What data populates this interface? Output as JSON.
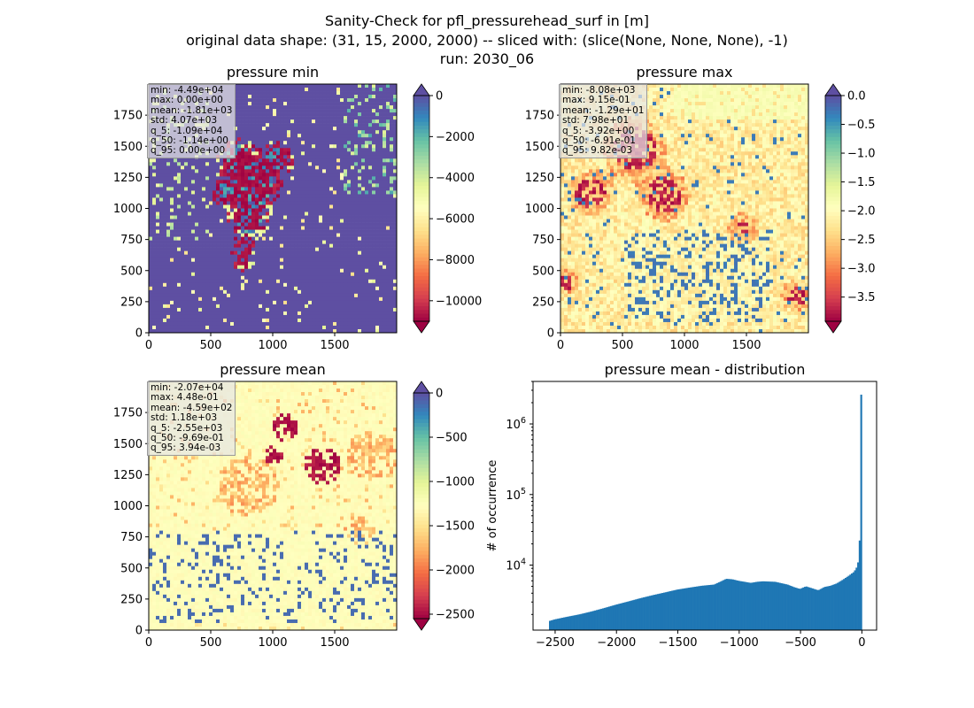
{
  "suptitle": [
    "Sanity-Check for pfl_pressurehead_surf in [m]",
    "original data shape: (31, 15, 2000, 2000) -- sliced with: (slice(None, None, None), -1)",
    "run: 2030_06"
  ],
  "chart_data": [
    {
      "type": "heatmap",
      "title": "pressure min",
      "colormap": "Spectral",
      "x_ticks": [
        "0",
        "500",
        "1000",
        "1500"
      ],
      "y_ticks": [
        "0",
        "250",
        "500",
        "750",
        "1000",
        "1250",
        "1500",
        "1750"
      ],
      "xlim": [
        0,
        2000
      ],
      "ylim": [
        0,
        2000
      ],
      "colorbar": {
        "vmin": -11000,
        "vmax": 0,
        "ticks": [
          0,
          -2000,
          -4000,
          -6000,
          -8000,
          -10000
        ],
        "tick_labels": [
          "0",
          "−2000",
          "−4000",
          "−6000",
          "−8000",
          "−10000"
        ],
        "extend": "both",
        "over_color": "#5e4fa2",
        "under_color": "#9e0142"
      },
      "stats": [
        "min: -4.49e+04",
        "max: 0.00e+00",
        "mean: -1.81e+03",
        "std: 4.07e+03",
        "q_5: -1.09e+04",
        "q_50: -1.14e+00",
        "q_95: 0.00e+00"
      ]
    },
    {
      "type": "heatmap",
      "title": "pressure max",
      "colormap": "Spectral",
      "x_ticks": [
        "0",
        "500",
        "1000",
        "1500"
      ],
      "y_ticks": [
        "0",
        "250",
        "500",
        "750",
        "1000",
        "1250",
        "1500",
        "1750"
      ],
      "xlim": [
        0,
        2000
      ],
      "ylim": [
        0,
        2000
      ],
      "colorbar": {
        "vmin": -3.92,
        "vmax": 0.0,
        "ticks": [
          0.0,
          -0.5,
          -1.0,
          -1.5,
          -2.0,
          -2.5,
          -3.0,
          -3.5
        ],
        "tick_labels": [
          "0.0",
          "−0.5",
          "−1.0",
          "−1.5",
          "−2.0",
          "−2.5",
          "−3.0",
          "−3.5"
        ],
        "extend": "both",
        "over_color": "#5e4fa2",
        "under_color": "#9e0142"
      },
      "stats": [
        "min: -8.08e+03",
        "max: 9.15e-01",
        "mean: -1.29e+01",
        "std: 7.98e+01",
        "q_5: -3.92e+00",
        "q_50: -6.91e-01",
        "q_95: 9.82e-03"
      ]
    },
    {
      "type": "heatmap",
      "title": "pressure mean",
      "colormap": "Spectral",
      "x_ticks": [
        "0",
        "500",
        "1000",
        "1500"
      ],
      "y_ticks": [
        "0",
        "250",
        "500",
        "750",
        "1000",
        "1250",
        "1500",
        "1750"
      ],
      "xlim": [
        0,
        2000
      ],
      "ylim": [
        0,
        2000
      ],
      "colorbar": {
        "vmin": -2550,
        "vmax": 0,
        "ticks": [
          0,
          -500,
          -1000,
          -1500,
          -2000,
          -2500
        ],
        "tick_labels": [
          "0",
          "−500",
          "−1000",
          "−1500",
          "−2000",
          "−2500"
        ],
        "extend": "both",
        "over_color": "#5e4fa2",
        "under_color": "#9e0142"
      },
      "stats": [
        "min: -2.07e+04",
        "max: 4.48e-01",
        "mean: -4.59e+02",
        "std: 1.18e+03",
        "q_5: -2.55e+03",
        "q_50: -9.69e-01",
        "q_95: 3.94e-03"
      ]
    },
    {
      "type": "bar",
      "title": "pressure mean - distribution",
      "ylabel": "# of occurrence",
      "yscale": "log",
      "xlim": [
        -2680,
        120
      ],
      "ylim": [
        1200,
        4000000
      ],
      "x_ticks": [
        -2500,
        -2000,
        -1500,
        -1000,
        -500,
        0
      ],
      "x_tick_labels": [
        "−2500",
        "−2000",
        "−1500",
        "−1000",
        "−500",
        "0"
      ],
      "y_ticks": [
        10000,
        100000,
        1000000
      ],
      "y_tick_labels": [
        "10^4",
        "10^5",
        "10^6"
      ],
      "bar_color": "#1f77b4",
      "bin_range": [
        -2550,
        0
      ],
      "bins": 200,
      "profile_x": [
        -2550,
        -2500,
        -2400,
        -2300,
        -2200,
        -2100,
        -2000,
        -1900,
        -1800,
        -1700,
        -1600,
        -1500,
        -1400,
        -1300,
        -1200,
        -1150,
        -1100,
        -1050,
        -1000,
        -950,
        -900,
        -850,
        -800,
        -700,
        -600,
        -550,
        -500,
        -450,
        -400,
        -350,
        -300,
        -250,
        -200,
        -150,
        -100,
        -60,
        -40,
        -25,
        -15,
        -8,
        -4,
        0
      ],
      "profile_y": [
        1600,
        1700,
        1850,
        2000,
        2200,
        2450,
        2750,
        3050,
        3400,
        3750,
        4100,
        4500,
        4800,
        5100,
        5300,
        5800,
        6400,
        6300,
        6000,
        5800,
        5600,
        5800,
        5900,
        5800,
        5300,
        4900,
        4600,
        5000,
        4700,
        4400,
        4900,
        5100,
        5500,
        6200,
        7100,
        8000,
        9000,
        11000,
        16000,
        45000,
        60000,
        2600000
      ]
    }
  ]
}
